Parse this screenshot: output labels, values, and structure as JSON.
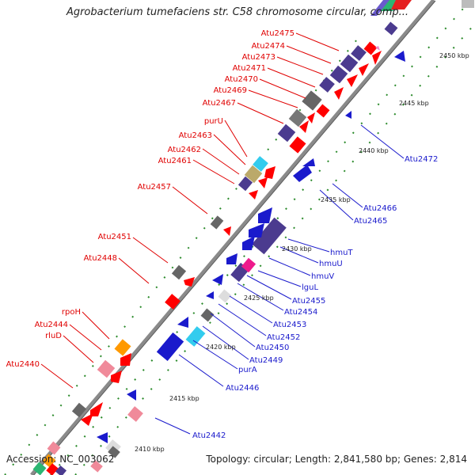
{
  "title": "Agrobacterium tumefaciens str. C58 chromosome circular, comp...",
  "accession": "Accession: NC_003062",
  "summary": "Topology: circular; Length: 2,841,580 bp; Genes: 2,814",
  "colors": {
    "backbone": "#888888",
    "red_gene": "#ff0000",
    "blue_gene": "#0000ff",
    "purple_gene": "#4b3b8f",
    "gray_gene": "#777777",
    "cyan_gene": "#33ccee",
    "magenta_gene": "#ee1a8c",
    "pink_gene": "#f08a9a",
    "orange_gene": "#ff9900",
    "olive_gene": "#bba96a",
    "tick_green": "#2a8a2a"
  },
  "ticks": [
    "2410 kbp",
    "2415 kbp",
    "2420 kbp",
    "2425 kbp",
    "2430 kbp",
    "2435 kbp",
    "2440 kbp",
    "2445 kbp",
    "2450 kbp"
  ],
  "top_labels": [
    "Atu2475",
    "Atu2474",
    "Atu2473",
    "Atu2471",
    "Atu2470",
    "Atu2469",
    "Atu2467",
    "purU",
    "Atu2463",
    "Atu2462",
    "Atu2461",
    "Atu2457",
    "Atu2451",
    "Atu2448",
    "rpoH",
    "Atu2444",
    "rluD",
    "Atu2440"
  ],
  "bottom_labels": [
    "Atu2472",
    "Atu2466",
    "Atu2465",
    "hmuT",
    "hmuU",
    "hmuV",
    "lguL",
    "Atu2455",
    "Atu2454",
    "Atu2453",
    "Atu2452",
    "Atu2450",
    "Atu2449",
    "purA",
    "Atu2446",
    "Atu2442"
  ]
}
